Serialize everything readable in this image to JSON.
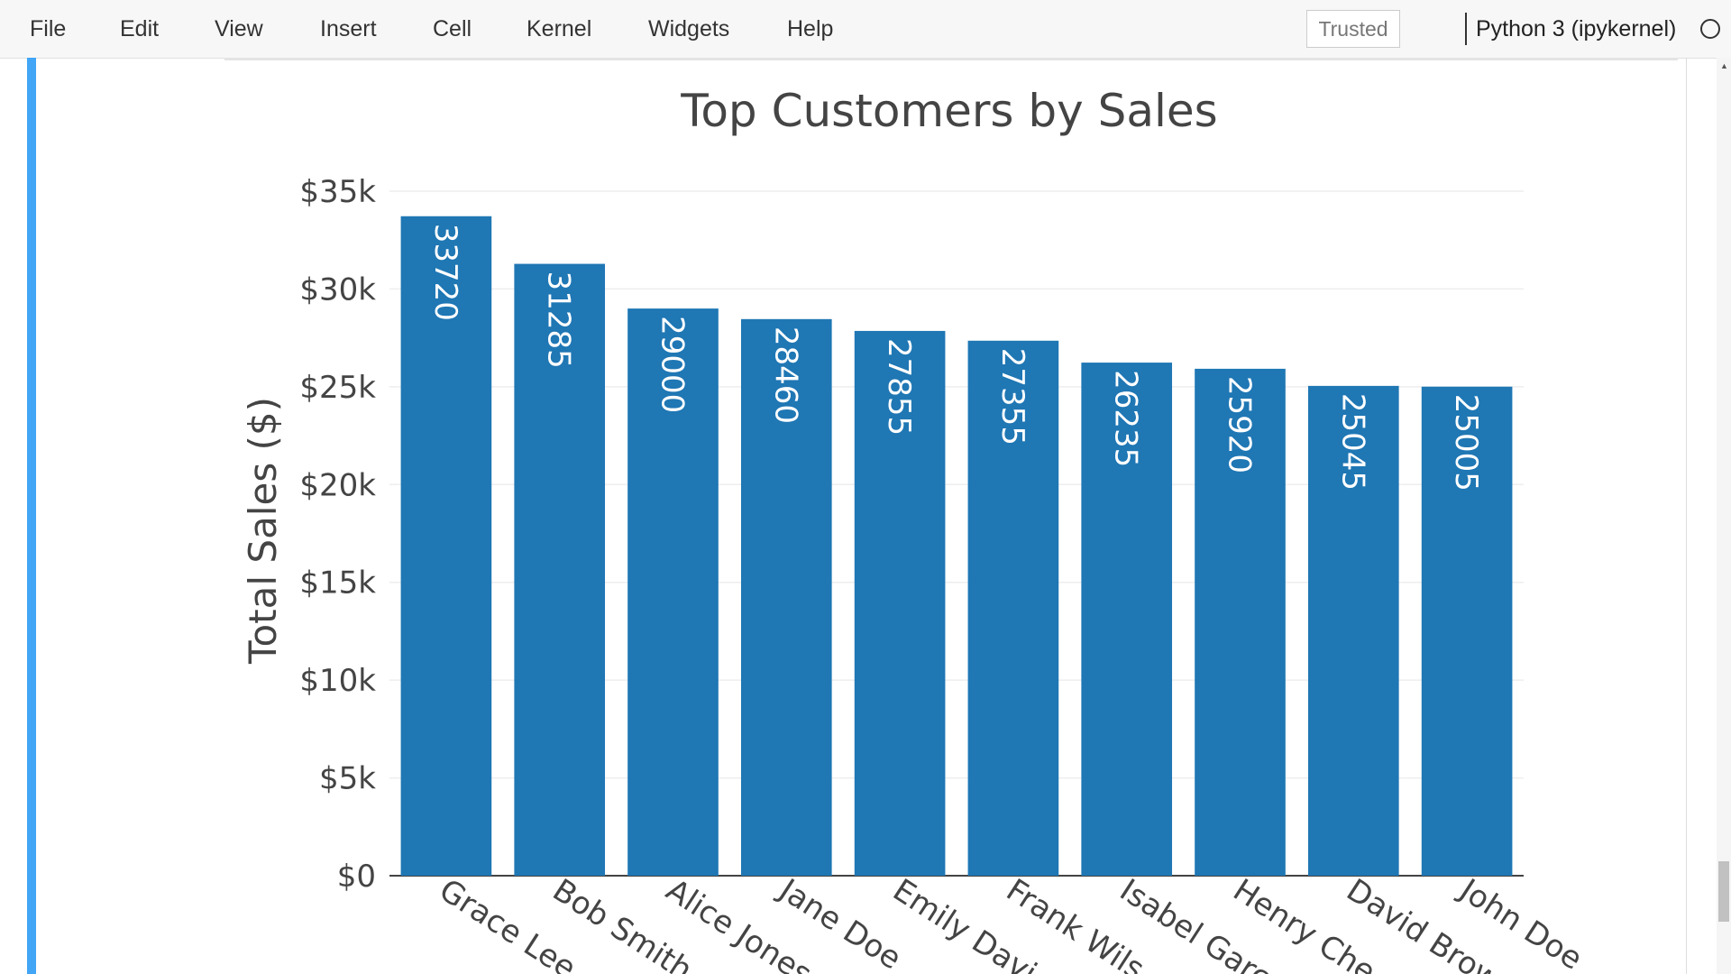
{
  "menu": {
    "items": [
      "File",
      "Edit",
      "View",
      "Insert",
      "Cell",
      "Kernel",
      "Widgets",
      "Help"
    ]
  },
  "notebook": {
    "trusted_label": "Trusted",
    "kernel_name": "Python 3 (ipykernel)"
  },
  "chart_data": {
    "type": "bar",
    "title": "Top Customers by Sales",
    "xlabel": "",
    "ylabel": "Total Sales ($)",
    "categories": [
      "Grace Lee",
      "Bob Smith",
      "Alice Jones",
      "Jane Doe",
      "Emily Davi",
      "Frank Wils",
      "Isabel Garc",
      "Henry Che",
      "David Brow",
      "John Doe"
    ],
    "values": [
      33720,
      31285,
      29000,
      28460,
      27855,
      27355,
      26235,
      25920,
      25045,
      25005
    ],
    "data_labels": [
      "33720",
      "31285",
      "29000",
      "28460",
      "27855",
      "27355",
      "26235",
      "25920",
      "25045",
      "25005"
    ],
    "ylim": [
      0,
      35000
    ],
    "yticks": [
      0,
      5000,
      10000,
      15000,
      20000,
      25000,
      30000,
      35000
    ],
    "ytick_labels": [
      "$0",
      "$5k",
      "$10k",
      "$15k",
      "$20k",
      "$25k",
      "$30k",
      "$35k"
    ],
    "grid": true,
    "bar_color": "#1f77b4"
  }
}
